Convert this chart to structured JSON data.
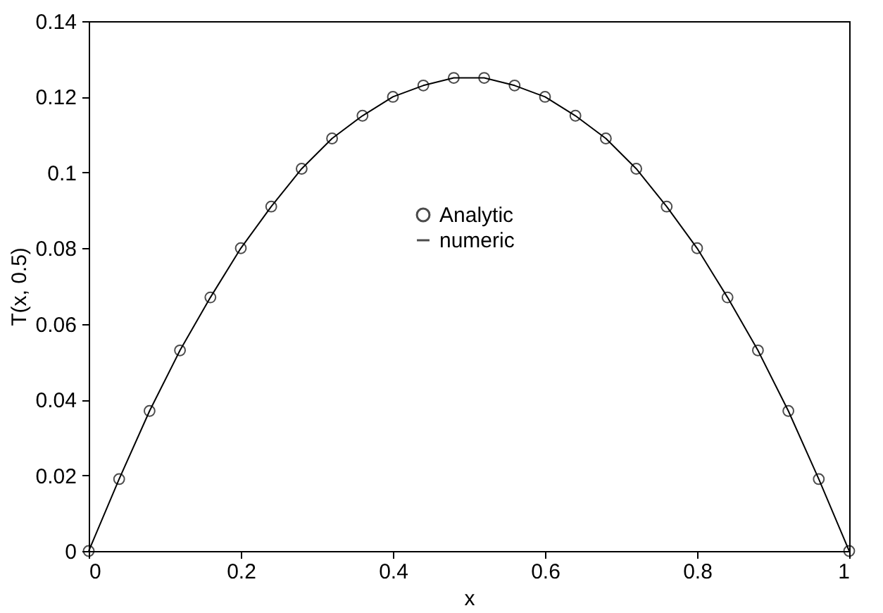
{
  "chart_data": {
    "type": "line",
    "xlabel": "x",
    "ylabel": "T(x, 0.5)",
    "x": [
      0,
      0.04,
      0.08,
      0.12,
      0.16,
      0.2,
      0.24,
      0.28,
      0.32,
      0.36,
      0.4,
      0.44,
      0.48,
      0.52,
      0.56,
      0.6,
      0.64,
      0.68,
      0.72,
      0.76,
      0.8,
      0.84,
      0.88,
      0.92,
      0.96,
      1
    ],
    "series": [
      {
        "name": "Analytic",
        "type": "scatter",
        "marker": "circle",
        "color": "#000000",
        "values": [
          0,
          0.019,
          0.037,
          0.053,
          0.067,
          0.08,
          0.091,
          0.101,
          0.109,
          0.115,
          0.12,
          0.123,
          0.125,
          0.125,
          0.123,
          0.12,
          0.115,
          0.109,
          0.101,
          0.091,
          0.08,
          0.067,
          0.053,
          0.037,
          0.019,
          0
        ]
      },
      {
        "name": "numeric",
        "line_style": "solid",
        "color": "#000000",
        "values": [
          0,
          0.019,
          0.037,
          0.053,
          0.067,
          0.08,
          0.091,
          0.101,
          0.109,
          0.115,
          0.12,
          0.123,
          0.125,
          0.125,
          0.123,
          0.12,
          0.115,
          0.109,
          0.101,
          0.091,
          0.08,
          0.067,
          0.053,
          0.037,
          0.019,
          0
        ]
      }
    ],
    "xlim": [
      0,
      1
    ],
    "xticks": [
      0,
      0.2,
      0.4,
      0.6,
      0.8,
      1
    ],
    "ylim": [
      0,
      0.14
    ],
    "yticks": [
      0,
      0.02,
      0.04,
      0.06,
      0.08,
      0.1,
      0.12,
      0.14
    ],
    "grid": false,
    "legend": "top"
  }
}
